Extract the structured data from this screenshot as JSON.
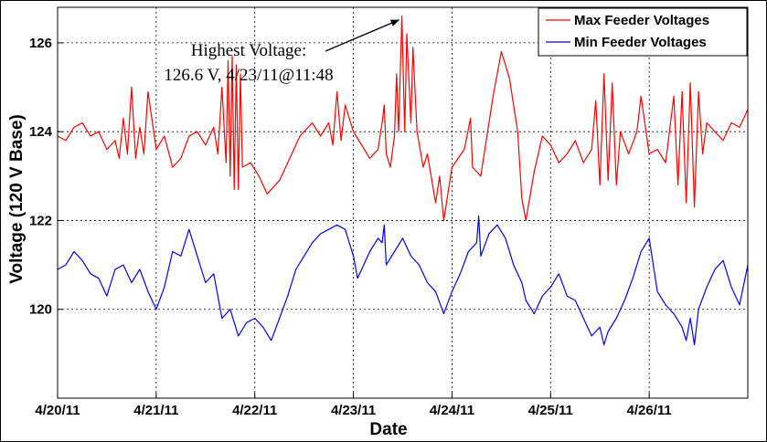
{
  "chart_data": {
    "type": "line",
    "title": "",
    "xlabel": "Date",
    "ylabel": "Voltage (120 V Base)",
    "x_tick_labels": [
      "4/20/11",
      "4/21/11",
      "4/22/11",
      "4/23/11",
      "4/24/11",
      "4/25/11",
      "4/26/11"
    ],
    "xlim": [
      "2011-04-20 00:00",
      "2011-04-27 00:00"
    ],
    "y_tick_labels": [
      "120",
      "122",
      "124",
      "126"
    ],
    "ylim": [
      118,
      126.8
    ],
    "grid": true,
    "legend_position": "top-right",
    "annotation": {
      "line1": "Highest Voltage:",
      "line2": "126.6 V, 4/23/11@11:48",
      "point_x": "2011-04-23 11:48",
      "point_y": 126.6
    },
    "series": [
      {
        "name": "Max Feeder Voltages",
        "color": "#ff0000",
        "points": [
          [
            "2011-04-20 00:00",
            123.9
          ],
          [
            "2011-04-20 02:00",
            123.8
          ],
          [
            "2011-04-20 04:00",
            124.1
          ],
          [
            "2011-04-20 06:00",
            124.2
          ],
          [
            "2011-04-20 08:00",
            123.9
          ],
          [
            "2011-04-20 10:00",
            124.0
          ],
          [
            "2011-04-20 12:00",
            123.6
          ],
          [
            "2011-04-20 14:00",
            123.8
          ],
          [
            "2011-04-20 15:00",
            123.4
          ],
          [
            "2011-04-20 16:00",
            124.3
          ],
          [
            "2011-04-20 17:00",
            123.5
          ],
          [
            "2011-04-20 18:00",
            125.0
          ],
          [
            "2011-04-20 19:00",
            123.4
          ],
          [
            "2011-04-20 20:00",
            124.1
          ],
          [
            "2011-04-20 21:00",
            123.5
          ],
          [
            "2011-04-20 22:00",
            124.9
          ],
          [
            "2011-04-21 00:00",
            123.6
          ],
          [
            "2011-04-21 02:00",
            123.9
          ],
          [
            "2011-04-21 04:00",
            123.2
          ],
          [
            "2011-04-21 06:00",
            123.4
          ],
          [
            "2011-04-21 08:00",
            123.9
          ],
          [
            "2011-04-21 10:00",
            124.0
          ],
          [
            "2011-04-21 12:00",
            123.7
          ],
          [
            "2011-04-21 14:00",
            124.1
          ],
          [
            "2011-04-21 15:00",
            123.5
          ],
          [
            "2011-04-21 16:00",
            125.0
          ],
          [
            "2011-04-21 17:00",
            123.3
          ],
          [
            "2011-04-21 17:30",
            125.6
          ],
          [
            "2011-04-21 18:00",
            123.0
          ],
          [
            "2011-04-21 18:30",
            125.7
          ],
          [
            "2011-04-21 19:00",
            122.7
          ],
          [
            "2011-04-21 19:30",
            125.5
          ],
          [
            "2011-04-21 20:00",
            122.7
          ],
          [
            "2011-04-21 20:30",
            125.3
          ],
          [
            "2011-04-21 21:00",
            123.2
          ],
          [
            "2011-04-21 23:00",
            123.3
          ],
          [
            "2011-04-22 01:00",
            123.0
          ],
          [
            "2011-04-22 03:00",
            122.6
          ],
          [
            "2011-04-22 06:00",
            122.9
          ],
          [
            "2011-04-22 09:00",
            123.5
          ],
          [
            "2011-04-22 11:00",
            123.9
          ],
          [
            "2011-04-22 14:00",
            124.2
          ],
          [
            "2011-04-22 16:00",
            123.9
          ],
          [
            "2011-04-22 18:00",
            124.2
          ],
          [
            "2011-04-22 19:00",
            123.7
          ],
          [
            "2011-04-22 20:00",
            124.9
          ],
          [
            "2011-04-22 21:00",
            123.8
          ],
          [
            "2011-04-22 22:00",
            124.6
          ],
          [
            "2011-04-23 00:00",
            124.0
          ],
          [
            "2011-04-23 02:00",
            123.7
          ],
          [
            "2011-04-23 04:00",
            123.4
          ],
          [
            "2011-04-23 06:00",
            123.6
          ],
          [
            "2011-04-23 07:00",
            124.2
          ],
          [
            "2011-04-23 07:30",
            124.6
          ],
          [
            "2011-04-23 08:00",
            123.5
          ],
          [
            "2011-04-23 09:00",
            123.2
          ],
          [
            "2011-04-23 10:00",
            123.9
          ],
          [
            "2011-04-23 10:30",
            125.3
          ],
          [
            "2011-04-23 11:00",
            124.0
          ],
          [
            "2011-04-23 11:48",
            126.6
          ],
          [
            "2011-04-23 12:30",
            124.0
          ],
          [
            "2011-04-23 13:00",
            126.2
          ],
          [
            "2011-04-23 14:00",
            124.2
          ],
          [
            "2011-04-23 14:30",
            125.9
          ],
          [
            "2011-04-23 15:30",
            124.0
          ],
          [
            "2011-04-23 17:00",
            123.2
          ],
          [
            "2011-04-23 18:00",
            123.5
          ],
          [
            "2011-04-23 20:00",
            122.4
          ],
          [
            "2011-04-23 21:00",
            123.0
          ],
          [
            "2011-04-23 22:00",
            122.0
          ],
          [
            "2011-04-24 00:00",
            123.2
          ],
          [
            "2011-04-24 03:00",
            123.6
          ],
          [
            "2011-04-24 04:30",
            124.3
          ],
          [
            "2011-04-24 05:00",
            123.2
          ],
          [
            "2011-04-24 07:00",
            123.0
          ],
          [
            "2011-04-24 10:00",
            124.8
          ],
          [
            "2011-04-24 12:00",
            125.8
          ],
          [
            "2011-04-24 14:00",
            125.2
          ],
          [
            "2011-04-24 16:00",
            124.0
          ],
          [
            "2011-04-24 17:00",
            122.5
          ],
          [
            "2011-04-24 18:00",
            122.0
          ],
          [
            "2011-04-24 20:00",
            123.1
          ],
          [
            "2011-04-24 22:00",
            123.9
          ],
          [
            "2011-04-25 00:00",
            123.7
          ],
          [
            "2011-04-25 02:00",
            123.3
          ],
          [
            "2011-04-25 04:00",
            123.5
          ],
          [
            "2011-04-25 06:00",
            123.8
          ],
          [
            "2011-04-25 08:00",
            123.3
          ],
          [
            "2011-04-25 10:00",
            123.6
          ],
          [
            "2011-04-25 11:00",
            124.7
          ],
          [
            "2011-04-25 12:00",
            122.8
          ],
          [
            "2011-04-25 13:00",
            125.3
          ],
          [
            "2011-04-25 14:00",
            122.9
          ],
          [
            "2011-04-25 15:00",
            125.1
          ],
          [
            "2011-04-25 16:00",
            122.8
          ],
          [
            "2011-04-25 17:00",
            124.0
          ],
          [
            "2011-04-25 19:00",
            123.5
          ],
          [
            "2011-04-25 21:00",
            124.0
          ],
          [
            "2011-04-25 22:00",
            124.8
          ],
          [
            "2011-04-26 00:00",
            123.5
          ],
          [
            "2011-04-26 02:00",
            123.6
          ],
          [
            "2011-04-26 04:00",
            123.3
          ],
          [
            "2011-04-26 06:00",
            124.8
          ],
          [
            "2011-04-26 07:00",
            122.8
          ],
          [
            "2011-04-26 08:00",
            124.9
          ],
          [
            "2011-04-26 09:00",
            122.4
          ],
          [
            "2011-04-26 10:00",
            125.1
          ],
          [
            "2011-04-26 11:00",
            122.3
          ],
          [
            "2011-04-26 12:00",
            124.9
          ],
          [
            "2011-04-26 13:00",
            123.5
          ],
          [
            "2011-04-26 14:00",
            124.2
          ],
          [
            "2011-04-26 16:00",
            124.0
          ],
          [
            "2011-04-26 18:00",
            123.8
          ],
          [
            "2011-04-26 20:00",
            124.2
          ],
          [
            "2011-04-26 22:00",
            124.1
          ],
          [
            "2011-04-27 00:00",
            124.5
          ]
        ]
      },
      {
        "name": "Min Feeder Voltages",
        "color": "#0000ff",
        "points": [
          [
            "2011-04-20 00:00",
            120.9
          ],
          [
            "2011-04-20 02:00",
            121.0
          ],
          [
            "2011-04-20 04:00",
            121.3
          ],
          [
            "2011-04-20 06:00",
            121.1
          ],
          [
            "2011-04-20 08:00",
            120.8
          ],
          [
            "2011-04-20 10:00",
            120.7
          ],
          [
            "2011-04-20 12:00",
            120.3
          ],
          [
            "2011-04-20 14:00",
            120.9
          ],
          [
            "2011-04-20 16:00",
            121.0
          ],
          [
            "2011-04-20 18:00",
            120.6
          ],
          [
            "2011-04-20 20:00",
            120.9
          ],
          [
            "2011-04-20 22:00",
            120.4
          ],
          [
            "2011-04-21 00:00",
            120.0
          ],
          [
            "2011-04-21 02:00",
            120.5
          ],
          [
            "2011-04-21 04:00",
            121.3
          ],
          [
            "2011-04-21 06:00",
            121.2
          ],
          [
            "2011-04-21 08:00",
            121.8
          ],
          [
            "2011-04-21 10:00",
            121.2
          ],
          [
            "2011-04-21 12:00",
            120.6
          ],
          [
            "2011-04-21 14:00",
            120.8
          ],
          [
            "2011-04-21 16:00",
            119.8
          ],
          [
            "2011-04-21 18:00",
            120.0
          ],
          [
            "2011-04-21 20:00",
            119.4
          ],
          [
            "2011-04-21 22:00",
            119.7
          ],
          [
            "2011-04-22 00:00",
            119.8
          ],
          [
            "2011-04-22 02:00",
            119.6
          ],
          [
            "2011-04-22 04:00",
            119.3
          ],
          [
            "2011-04-22 06:00",
            119.8
          ],
          [
            "2011-04-22 08:00",
            120.3
          ],
          [
            "2011-04-22 10:00",
            120.9
          ],
          [
            "2011-04-22 12:00",
            121.2
          ],
          [
            "2011-04-22 14:00",
            121.5
          ],
          [
            "2011-04-22 16:00",
            121.7
          ],
          [
            "2011-04-22 18:00",
            121.8
          ],
          [
            "2011-04-22 20:00",
            121.9
          ],
          [
            "2011-04-22 22:00",
            121.8
          ],
          [
            "2011-04-23 00:00",
            121.2
          ],
          [
            "2011-04-23 01:00",
            120.7
          ],
          [
            "2011-04-23 02:00",
            120.9
          ],
          [
            "2011-04-23 04:00",
            121.3
          ],
          [
            "2011-04-23 06:00",
            121.6
          ],
          [
            "2011-04-23 07:00",
            121.5
          ],
          [
            "2011-04-23 07:30",
            121.9
          ],
          [
            "2011-04-23 08:00",
            121.0
          ],
          [
            "2011-04-23 10:00",
            121.3
          ],
          [
            "2011-04-23 12:00",
            121.6
          ],
          [
            "2011-04-23 14:00",
            121.2
          ],
          [
            "2011-04-23 16:00",
            121.0
          ],
          [
            "2011-04-23 18:00",
            120.6
          ],
          [
            "2011-04-23 20:00",
            120.4
          ],
          [
            "2011-04-23 22:00",
            119.9
          ],
          [
            "2011-04-24 00:00",
            120.4
          ],
          [
            "2011-04-24 02:00",
            120.8
          ],
          [
            "2011-04-24 04:00",
            121.3
          ],
          [
            "2011-04-24 06:00",
            121.5
          ],
          [
            "2011-04-24 06:30",
            122.1
          ],
          [
            "2011-04-24 07:00",
            121.2
          ],
          [
            "2011-04-24 09:00",
            121.7
          ],
          [
            "2011-04-24 11:00",
            121.9
          ],
          [
            "2011-04-24 13:00",
            121.6
          ],
          [
            "2011-04-24 15:00",
            121.0
          ],
          [
            "2011-04-24 17:00",
            120.6
          ],
          [
            "2011-04-24 18:00",
            120.2
          ],
          [
            "2011-04-24 20:00",
            119.9
          ],
          [
            "2011-04-24 22:00",
            120.3
          ],
          [
            "2011-04-25 00:00",
            120.5
          ],
          [
            "2011-04-25 02:00",
            120.8
          ],
          [
            "2011-04-25 04:00",
            120.3
          ],
          [
            "2011-04-25 06:00",
            120.2
          ],
          [
            "2011-04-25 08:00",
            119.8
          ],
          [
            "2011-04-25 10:00",
            119.4
          ],
          [
            "2011-04-25 12:00",
            119.6
          ],
          [
            "2011-04-25 13:00",
            119.2
          ],
          [
            "2011-04-25 14:00",
            119.5
          ],
          [
            "2011-04-25 16:00",
            119.8
          ],
          [
            "2011-04-25 18:00",
            120.2
          ],
          [
            "2011-04-25 20:00",
            120.7
          ],
          [
            "2011-04-25 22:00",
            121.3
          ],
          [
            "2011-04-26 00:00",
            121.6
          ],
          [
            "2011-04-26 02:00",
            120.4
          ],
          [
            "2011-04-26 04:00",
            120.1
          ],
          [
            "2011-04-26 06:00",
            119.9
          ],
          [
            "2011-04-26 08:00",
            119.6
          ],
          [
            "2011-04-26 09:00",
            119.3
          ],
          [
            "2011-04-26 10:00",
            119.8
          ],
          [
            "2011-04-26 11:00",
            119.2
          ],
          [
            "2011-04-26 12:00",
            120.0
          ],
          [
            "2011-04-26 14:00",
            120.5
          ],
          [
            "2011-04-26 16:00",
            120.9
          ],
          [
            "2011-04-26 18:00",
            121.1
          ],
          [
            "2011-04-26 20:00",
            120.5
          ],
          [
            "2011-04-26 22:00",
            120.1
          ],
          [
            "2011-04-27 00:00",
            121.0
          ]
        ]
      }
    ]
  }
}
